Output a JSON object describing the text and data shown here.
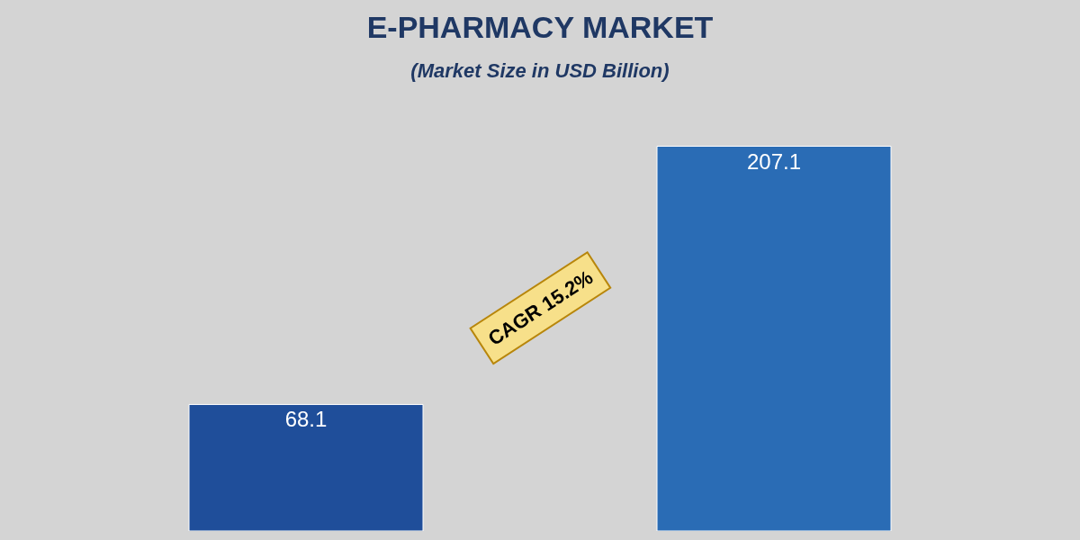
{
  "chart_data": {
    "type": "bar",
    "title": "E-PHARMACY MARKET",
    "subtitle": "(Market Size in USD Billion)",
    "categories": [
      null,
      null
    ],
    "values": [
      68.1,
      207.1
    ],
    "colors": [
      "#1f4e9a",
      "#2a6cb5"
    ],
    "data_labels": true,
    "annotations": [
      "CAGR 15.2%"
    ]
  }
}
